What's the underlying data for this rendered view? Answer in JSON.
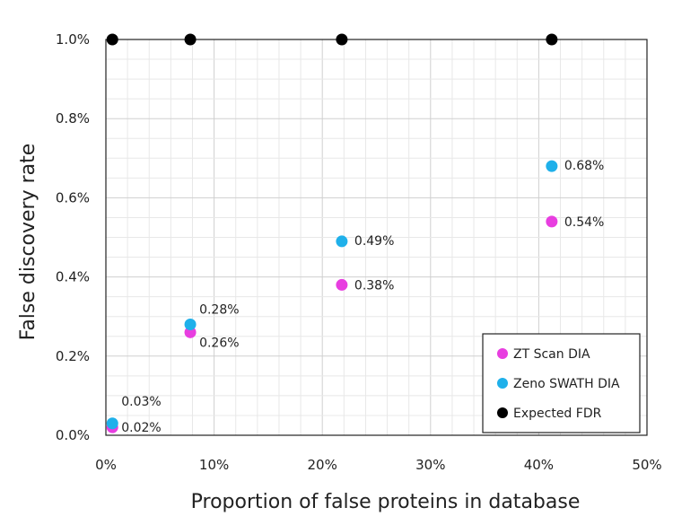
{
  "chart_data": {
    "type": "scatter",
    "xlabel": "Proportion of false proteins in database",
    "ylabel": "False discovery rate",
    "xlim": [
      0,
      50
    ],
    "ylim": [
      0,
      1.0
    ],
    "x_ticks": [
      "0%",
      "10%",
      "20%",
      "30%",
      "40%",
      "50%"
    ],
    "y_ticks": [
      "0.0%",
      "0.2%",
      "0.4%",
      "0.6%",
      "0.8%",
      "1.0%"
    ],
    "grid": true,
    "legend_position": "bottom-right",
    "series": [
      {
        "name": "ZT Scan DIA",
        "color": "#e83ee0",
        "points": [
          {
            "x": 0.6,
            "y": 0.02,
            "label": "0.02%"
          },
          {
            "x": 7.8,
            "y": 0.26,
            "label": "0.26%"
          },
          {
            "x": 21.8,
            "y": 0.38,
            "label": "0.38%"
          },
          {
            "x": 41.2,
            "y": 0.54,
            "label": "0.54%"
          }
        ]
      },
      {
        "name": "Zeno SWATH DIA",
        "color": "#1fb0ea",
        "points": [
          {
            "x": 0.6,
            "y": 0.03,
            "label": "0.03%"
          },
          {
            "x": 7.8,
            "y": 0.28,
            "label": "0.28%"
          },
          {
            "x": 21.8,
            "y": 0.49,
            "label": "0.49%"
          },
          {
            "x": 41.2,
            "y": 0.68,
            "label": "0.68%"
          }
        ]
      },
      {
        "name": "Expected FDR",
        "color": "#000000",
        "points": [
          {
            "x": 0.6,
            "y": 1.0
          },
          {
            "x": 7.8,
            "y": 1.0
          },
          {
            "x": 21.8,
            "y": 1.0
          },
          {
            "x": 41.2,
            "y": 1.0
          }
        ]
      }
    ]
  }
}
